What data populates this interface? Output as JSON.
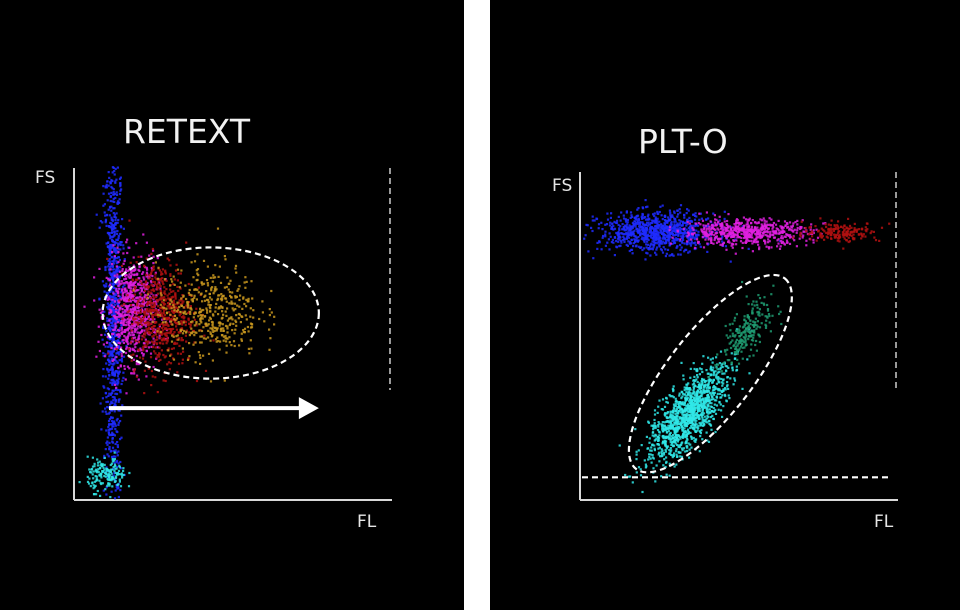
{
  "chart_data": [
    {
      "type": "scatter",
      "title": "RETEXT",
      "xlabel": "FL",
      "ylabel": "FS",
      "xlim": [
        0,
        100
      ],
      "ylim": [
        0,
        100
      ],
      "grid": false,
      "ticks": false,
      "clusters": [
        {
          "color": "#1f2cff",
          "center": [
            12,
            55
          ],
          "spread": [
            1.5,
            28
          ],
          "count": 900
        },
        {
          "color": "#e020e0",
          "center": [
            18,
            58
          ],
          "spread": [
            4,
            8
          ],
          "count": 700
        },
        {
          "color": "#b01010",
          "center": [
            27,
            57
          ],
          "spread": [
            5,
            8
          ],
          "count": 600
        },
        {
          "color": "#c8961e",
          "center": [
            42,
            58
          ],
          "spread": [
            8,
            7
          ],
          "count": 450
        },
        {
          "color": "#30e8e8",
          "center": [
            10,
            8
          ],
          "spread": [
            3,
            2.5
          ],
          "count": 160
        }
      ],
      "annotations": {
        "gate_ellipse": {
          "center": [
            43,
            57
          ],
          "radii": [
            34,
            20
          ],
          "rotation": 0
        },
        "arrow": {
          "from": [
            11,
            28
          ],
          "to": [
            77,
            28
          ]
        }
      }
    },
    {
      "type": "scatter",
      "title": "PLT-O",
      "xlabel": "FL",
      "ylabel": "FS",
      "xlim": [
        0,
        100
      ],
      "ylim": [
        0,
        100
      ],
      "grid": false,
      "ticks": false,
      "clusters": [
        {
          "color": "#1f2cff",
          "center": [
            24,
            83
          ],
          "spread": [
            9,
            3
          ],
          "count": 900
        },
        {
          "color": "#e020e0",
          "center": [
            52,
            83
          ],
          "spread": [
            10,
            2
          ],
          "count": 600
        },
        {
          "color": "#b01010",
          "center": [
            82,
            83
          ],
          "spread": [
            6,
            1.5
          ],
          "count": 180
        },
        {
          "color": "#30e8e8",
          "center": [
            34,
            27
          ],
          "spread": [
            9,
            3.5
          ],
          "rotation": 52,
          "count": 1200
        },
        {
          "color": "#1f9a70",
          "center": [
            52,
            52
          ],
          "spread": [
            6,
            2.5
          ],
          "rotation": 52,
          "count": 220
        }
      ],
      "annotations": {
        "gate_ellipse": {
          "center": [
            41,
            39
          ],
          "radii": [
            38,
            13
          ],
          "rotation": 52
        },
        "threshold_line_y": 7
      }
    }
  ]
}
